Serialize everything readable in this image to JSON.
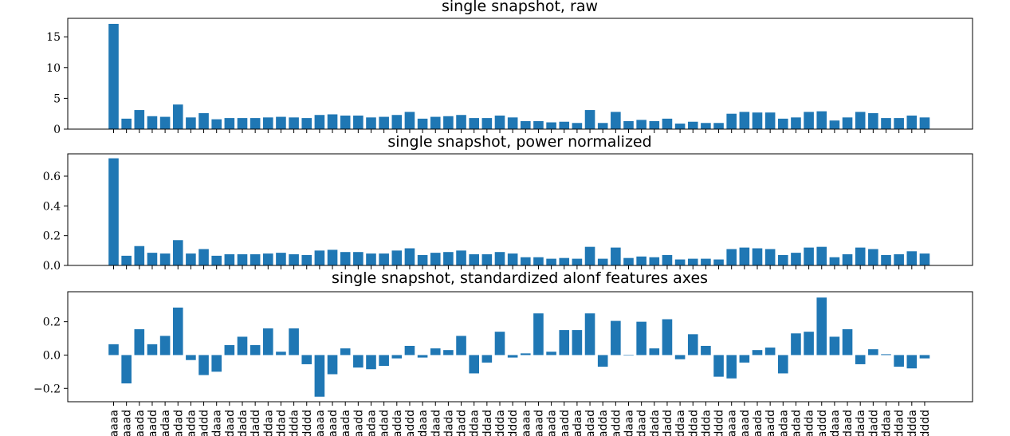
{
  "colors": {
    "bar": "#1f77b4",
    "axes": "#000000",
    "background": "#ffffff"
  },
  "chart_data": [
    {
      "type": "bar",
      "title": "single snapshot, raw",
      "xlabel": "",
      "ylabel": "",
      "ylim": [
        0,
        18
      ],
      "yticks": [
        0,
        5,
        10,
        15
      ],
      "ytick_labels": [
        "0",
        "5",
        "10",
        "15"
      ],
      "grid": false,
      "show_xtick_labels": false,
      "values": [
        17.1,
        1.7,
        3.1,
        2.1,
        2.0,
        4.0,
        1.9,
        2.6,
        1.6,
        1.8,
        1.8,
        1.8,
        1.9,
        2.0,
        1.9,
        1.8,
        2.3,
        2.4,
        2.2,
        2.2,
        1.9,
        2.0,
        2.3,
        2.8,
        1.7,
        2.0,
        2.1,
        2.3,
        1.8,
        1.8,
        2.2,
        1.9,
        1.3,
        1.3,
        1.1,
        1.2,
        1.0,
        3.1,
        1.0,
        2.8,
        1.3,
        1.5,
        1.3,
        1.7,
        0.9,
        1.2,
        1.0,
        1.0,
        2.5,
        2.8,
        2.7,
        2.7,
        1.7,
        1.9,
        2.8,
        2.9,
        1.4,
        1.9,
        2.8,
        2.6,
        1.8,
        1.8,
        2.2,
        1.9
      ]
    },
    {
      "type": "bar",
      "title": "single snapshot, power normalized",
      "xlabel": "",
      "ylabel": "",
      "ylim": [
        0,
        0.75
      ],
      "yticks": [
        0,
        0.2,
        0.4,
        0.6
      ],
      "ytick_labels": [
        "0.0",
        "0.2",
        "0.4",
        "0.6"
      ],
      "grid": false,
      "show_xtick_labels": false,
      "values": [
        0.72,
        0.065,
        0.13,
        0.085,
        0.08,
        0.17,
        0.08,
        0.11,
        0.065,
        0.075,
        0.075,
        0.075,
        0.08,
        0.085,
        0.075,
        0.07,
        0.1,
        0.105,
        0.09,
        0.09,
        0.08,
        0.08,
        0.1,
        0.115,
        0.07,
        0.085,
        0.09,
        0.1,
        0.075,
        0.075,
        0.09,
        0.08,
        0.055,
        0.055,
        0.045,
        0.05,
        0.045,
        0.125,
        0.045,
        0.12,
        0.05,
        0.06,
        0.055,
        0.07,
        0.04,
        0.045,
        0.045,
        0.04,
        0.11,
        0.12,
        0.115,
        0.11,
        0.07,
        0.085,
        0.12,
        0.125,
        0.055,
        0.075,
        0.12,
        0.11,
        0.07,
        0.075,
        0.095,
        0.08
      ]
    },
    {
      "type": "bar",
      "title": "single snapshot, standardized alonf features axes",
      "xlabel": "",
      "ylabel": "",
      "ylim": [
        -0.28,
        0.38
      ],
      "yticks": [
        -0.2,
        0.0,
        0.2
      ],
      "ytick_labels": [
        "−0.2",
        "0.0",
        "0.2"
      ],
      "grid": false,
      "show_xtick_labels": true,
      "values": [
        0.065,
        -0.17,
        0.155,
        0.065,
        0.115,
        0.285,
        -0.03,
        -0.12,
        -0.1,
        0.06,
        0.11,
        0.06,
        0.16,
        0.02,
        0.16,
        -0.055,
        -0.25,
        -0.115,
        0.04,
        -0.075,
        -0.085,
        -0.065,
        -0.02,
        0.055,
        -0.015,
        0.04,
        0.03,
        0.115,
        -0.11,
        -0.045,
        0.14,
        -0.015,
        0.01,
        0.25,
        0.02,
        0.15,
        0.15,
        0.25,
        -0.07,
        0.205,
        0.0,
        0.2,
        0.04,
        0.215,
        -0.025,
        0.125,
        0.055,
        -0.13,
        -0.14,
        -0.045,
        0.03,
        0.045,
        -0.11,
        0.13,
        0.14,
        0.345,
        0.11,
        0.155,
        -0.055,
        0.035,
        0.005,
        -0.07,
        -0.08,
        -0.02
      ]
    }
  ],
  "categories": [
    "aaaa",
    "aaad",
    "aada",
    "aadd",
    "adaa",
    "adad",
    "adda",
    "addd",
    "daaa",
    "daad",
    "dada",
    "dadd",
    "ddaa",
    "ddad",
    "ddda",
    "dddd",
    "aaaa",
    "aaad",
    "aada",
    "aadd",
    "adaa",
    "adad",
    "adda",
    "addd",
    "daaa",
    "daad",
    "dada",
    "dadd",
    "ddaa",
    "ddad",
    "ddda",
    "dddd",
    "aaaa",
    "aaad",
    "aada",
    "aadd",
    "adaa",
    "adad",
    "adda",
    "addd",
    "daaa",
    "daad",
    "dada",
    "dadd",
    "ddaa",
    "ddad",
    "ddda",
    "dddd",
    "aaaa",
    "aaad",
    "aada",
    "aadd",
    "adaa",
    "adad",
    "adda",
    "addd",
    "daaa",
    "daad",
    "dada",
    "dadd",
    "ddaa",
    "ddad",
    "ddda",
    "dddd"
  ]
}
